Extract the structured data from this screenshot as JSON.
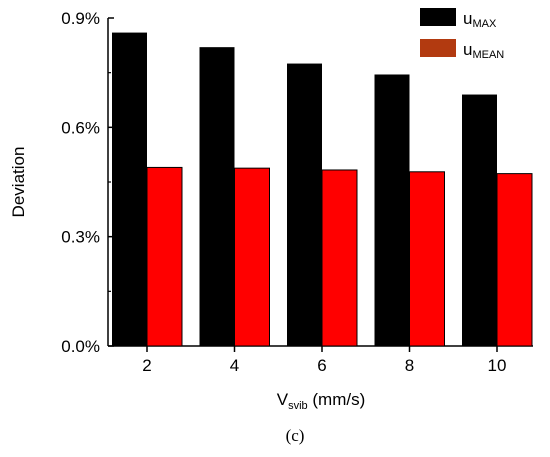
{
  "chart_data": {
    "type": "bar",
    "categories": [
      "2",
      "4",
      "6",
      "8",
      "10"
    ],
    "series": [
      {
        "name_main": "u",
        "name_sub": "MAX",
        "color": "#000000",
        "values": [
          0.86,
          0.82,
          0.775,
          0.745,
          0.69
        ]
      },
      {
        "name_main": "u",
        "name_sub": "MEAN",
        "color": "#ff0000",
        "values": [
          0.49,
          0.488,
          0.483,
          0.478,
          0.473
        ]
      }
    ],
    "ylim": [
      0,
      0.9
    ],
    "yticks": [
      0,
      0.3,
      0.6,
      0.9
    ],
    "ytick_labels": [
      "0.0%",
      "0.3%",
      "0.6%",
      "0.9%"
    ],
    "ylabel": "Deviation",
    "xlabel_main": "V",
    "xlabel_sub": "svib",
    "xlabel_rest": " (mm/s)",
    "legend_position": "top-right",
    "legend_swatch_colors": [
      "#000000",
      "#b23a10"
    ],
    "grid": false
  },
  "caption": "(c)"
}
